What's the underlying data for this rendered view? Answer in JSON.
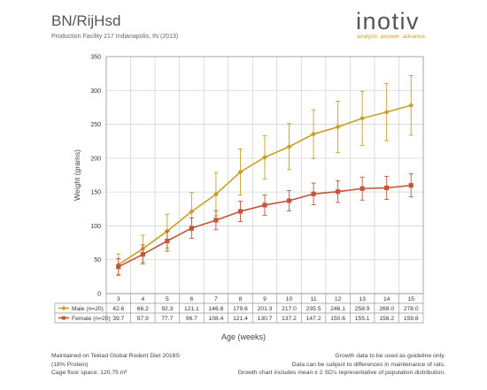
{
  "header": {
    "title": "BN/RijHsd",
    "subtitle": "Production Facility 217 Indianapolis, IN (2013)"
  },
  "logo": {
    "word": "inotiv",
    "tagline": "analyze. answer. advance."
  },
  "chart_data": {
    "type": "line",
    "ylabel": "Weight (grams)",
    "xlabel": "Age (weeks)",
    "ylim": [
      0,
      350
    ],
    "yticks": [
      0,
      50,
      100,
      150,
      200,
      250,
      300,
      350
    ],
    "categories": [
      "3",
      "4",
      "5",
      "6",
      "7",
      "8",
      "9",
      "10",
      "11",
      "12",
      "13",
      "14",
      "15"
    ],
    "grid": true,
    "legend": "table-below-chart",
    "series": [
      {
        "name": "Male (n=20)",
        "color": "#c8a02a",
        "marker": "diamond",
        "values": [
          42.6,
          66.2,
          92.3,
          121.1,
          146.8,
          179.6,
          201.3,
          217.0,
          235.5,
          246.1,
          258.9,
          268.0,
          278.0
        ],
        "error_plus_minus": [
          16,
          20,
          25,
          28,
          32,
          34,
          32,
          34,
          36,
          38,
          40,
          42,
          44
        ]
      },
      {
        "name": "Female (n=20)",
        "color": "#c0573a",
        "marker": "square",
        "values": [
          39.7,
          57.9,
          77.7,
          96.7,
          108.4,
          121.4,
          130.7,
          137.2,
          147.2,
          150.6,
          155.1,
          156.2,
          159.8
        ],
        "error_plus_minus": [
          12,
          14,
          15,
          15,
          14,
          15,
          15,
          15,
          16,
          16,
          17,
          17,
          17
        ]
      }
    ],
    "table_rows": [
      [
        "42.6",
        "66.2",
        "92.3",
        "121.1",
        "146.8",
        "179.6",
        "201.3",
        "217.0",
        "235.5",
        "246.1",
        "258.9",
        "268.0",
        "278.0"
      ],
      [
        "39.7",
        "57.9",
        "77.7",
        "96.7",
        "108.4",
        "121.4",
        "130.7",
        "137.2",
        "147.2",
        "150.6",
        "155.1",
        "156.2",
        "159.8"
      ]
    ]
  },
  "notes": {
    "left": [
      "Maintained on Teklad Global Rodent Diet 2018S",
      "(18% Protein)",
      "Cage floor space: 120.75 in²"
    ],
    "right": [
      "Growth data to be used as guideline only.",
      "Data can be subject to differences in maintenance of rats.",
      "Growth chart includes mean ± 2 SD's representative of population distribution."
    ]
  }
}
